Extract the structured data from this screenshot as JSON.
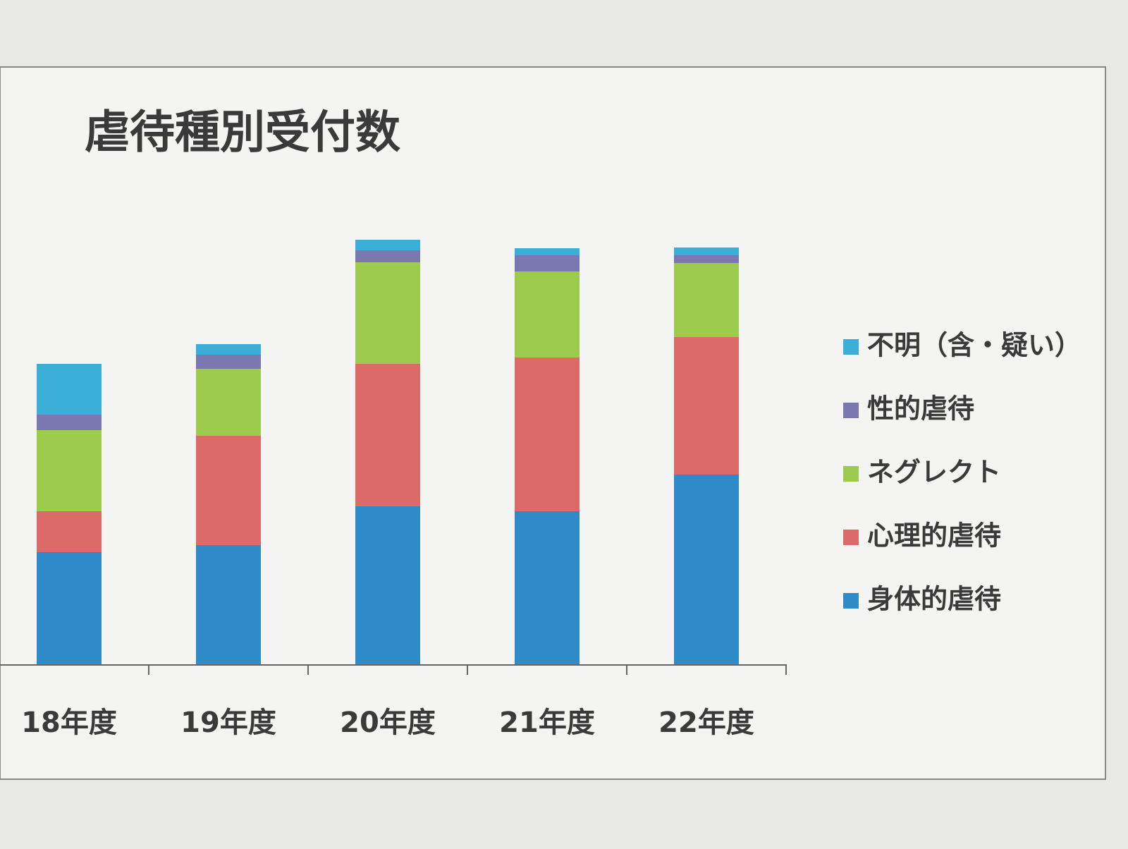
{
  "chart_data": {
    "type": "stacked-bar",
    "title": "虐待種別受付数",
    "categories": [
      "18年度",
      "19年度",
      "20年度",
      "21年度",
      "22年度"
    ],
    "series": [
      {
        "name": "身体的虐待",
        "color": "#2e8bc8",
        "values": [
          159,
          169,
          224,
          217,
          269
        ]
      },
      {
        "name": "心理的虐待",
        "color": "#db6a68",
        "values": [
          58,
          155,
          202,
          218,
          195
        ]
      },
      {
        "name": "ネグレクト",
        "color": "#9ccb4e",
        "values": [
          115,
          95,
          144,
          122,
          105
        ]
      },
      {
        "name": "性的虐待",
        "color": "#7b78b0",
        "values": [
          22,
          20,
          17,
          23,
          11
        ]
      },
      {
        "name": "不明（含・疑い）",
        "color": "#3aaed6",
        "values": [
          72,
          15,
          15,
          10,
          11
        ]
      }
    ]
  }
}
